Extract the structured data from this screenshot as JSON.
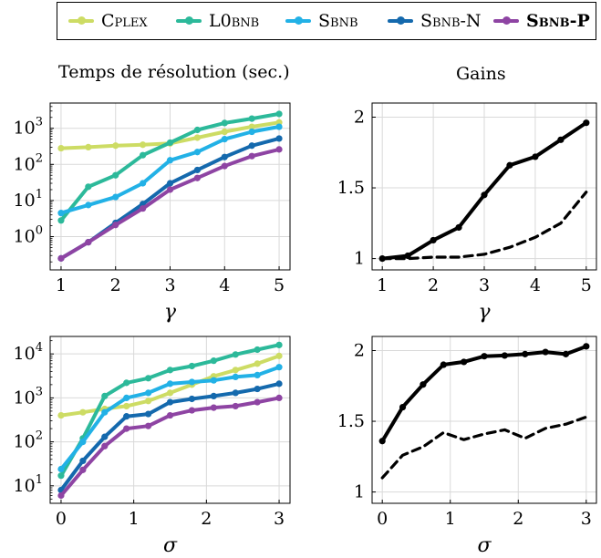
{
  "legend": {
    "entries": [
      {
        "name": "Cplex",
        "color": "#cddc64",
        "style": "smallcaps"
      },
      {
        "name": "L0bnb",
        "color": "#2cb99a",
        "style": "smallcaps"
      },
      {
        "name": "Sbnb",
        "color": "#22b1e6",
        "style": "smallcaps"
      },
      {
        "name": "Sbnb-N",
        "color": "#1469ad",
        "style": "smallcaps"
      },
      {
        "name": "Sbnb-P",
        "color": "#8e44a3",
        "style": "smallcaps-bold"
      }
    ]
  },
  "titles": {
    "left": "Temps de résolution (sec.)",
    "right": "Gains"
  },
  "chart_data": [
    {
      "id": "time-gamma",
      "type": "line",
      "title": "",
      "xlabel": "γ",
      "ylabel": "",
      "yscale": "log",
      "xlim": [
        0.8,
        5.2
      ],
      "ylim": [
        0.12,
        5000
      ],
      "xticks": [
        1,
        2,
        3,
        4,
        5
      ],
      "yticks": [
        {
          "v": 1,
          "t": "10^0"
        },
        {
          "v": 10,
          "t": "10^1"
        },
        {
          "v": 100,
          "t": "10^2"
        },
        {
          "v": 1000,
          "t": "10^3"
        }
      ],
      "grid": true,
      "x": [
        1,
        1.5,
        2,
        2.5,
        3,
        3.5,
        4,
        4.5,
        5
      ],
      "series": [
        {
          "name": "Cplex",
          "color": "#cddc64",
          "values": [
            280,
            300,
            330,
            350,
            380,
            550,
            800,
            1100,
            1450
          ]
        },
        {
          "name": "L0bnb",
          "color": "#2cb99a",
          "values": [
            2.8,
            24,
            50,
            180,
            400,
            900,
            1400,
            1850,
            2500
          ]
        },
        {
          "name": "Sbnb",
          "color": "#22b1e6",
          "values": [
            4.5,
            7.5,
            12.5,
            30,
            130,
            220,
            500,
            800,
            1100
          ]
        },
        {
          "name": "Sbnb-N",
          "color": "#1469ad",
          "values": [
            0.25,
            0.7,
            2.4,
            8,
            30,
            70,
            160,
            330,
            520
          ]
        },
        {
          "name": "Sbnb-P",
          "color": "#8e44a3",
          "values": [
            0.25,
            0.7,
            2.1,
            6,
            20,
            42,
            90,
            170,
            260
          ]
        }
      ]
    },
    {
      "id": "gain-gamma",
      "type": "line",
      "title": "",
      "xlabel": "γ",
      "ylabel": "",
      "yscale": "linear",
      "xlim": [
        0.8,
        5.2
      ],
      "ylim": [
        0.92,
        2.1
      ],
      "xticks": [
        1,
        2,
        3,
        4,
        5
      ],
      "yticks": [
        {
          "v": 1,
          "t": "1"
        },
        {
          "v": 1.5,
          "t": "1.5"
        },
        {
          "v": 2,
          "t": "2"
        }
      ],
      "grid": true,
      "x": [
        1,
        1.5,
        2,
        2.5,
        3,
        3.5,
        4,
        4.5,
        5
      ],
      "series": [
        {
          "name": "",
          "color": "#000000",
          "dash": false,
          "markers": true,
          "values": [
            1.0,
            1.02,
            1.13,
            1.22,
            1.45,
            1.66,
            1.72,
            1.84,
            1.96
          ]
        },
        {
          "name": "",
          "color": "#000000",
          "dash": true,
          "markers": false,
          "values": [
            1.0,
            1.0,
            1.01,
            1.01,
            1.03,
            1.08,
            1.15,
            1.25,
            1.47
          ]
        }
      ]
    },
    {
      "id": "time-sigma",
      "type": "line",
      "title": "",
      "xlabel": "σ",
      "ylabel": "",
      "yscale": "log",
      "xlim": [
        -0.15,
        3.15
      ],
      "ylim": [
        4,
        25000
      ],
      "xticks": [
        0,
        1,
        2,
        3
      ],
      "yticks": [
        {
          "v": 10,
          "t": "10^1"
        },
        {
          "v": 100,
          "t": "10^2"
        },
        {
          "v": 1000,
          "t": "10^3"
        },
        {
          "v": 10000,
          "t": "10^4"
        }
      ],
      "grid": true,
      "x": [
        0,
        0.3,
        0.6,
        0.9,
        1.2,
        1.5,
        1.8,
        2.1,
        2.4,
        2.7,
        3.0
      ],
      "series": [
        {
          "name": "Cplex",
          "color": "#cddc64",
          "values": [
            400,
            470,
            560,
            650,
            850,
            1300,
            2000,
            3100,
            4300,
            6000,
            9000
          ]
        },
        {
          "name": "L0bnb",
          "color": "#2cb99a",
          "values": [
            17,
            120,
            1100,
            2200,
            2800,
            4300,
            5300,
            7000,
            9700,
            12500,
            16000
          ]
        },
        {
          "name": "Sbnb",
          "color": "#22b1e6",
          "values": [
            24,
            100,
            470,
            1000,
            1300,
            2100,
            2300,
            2500,
            3000,
            3300,
            5000
          ]
        },
        {
          "name": "Sbnb-N",
          "color": "#1469ad",
          "values": [
            8,
            37,
            130,
            380,
            430,
            800,
            950,
            1100,
            1300,
            1600,
            2100
          ]
        },
        {
          "name": "Sbnb-P",
          "color": "#8e44a3",
          "values": [
            6,
            23,
            80,
            200,
            230,
            400,
            520,
            600,
            650,
            800,
            1000
          ]
        }
      ]
    },
    {
      "id": "gain-sigma",
      "type": "line",
      "title": "",
      "xlabel": "σ",
      "ylabel": "",
      "yscale": "linear",
      "xlim": [
        -0.15,
        3.15
      ],
      "ylim": [
        0.92,
        2.1
      ],
      "xticks": [
        0,
        1,
        2,
        3
      ],
      "yticks": [
        {
          "v": 1,
          "t": "1"
        },
        {
          "v": 1.5,
          "t": "1.5"
        },
        {
          "v": 2,
          "t": "2"
        }
      ],
      "grid": true,
      "x": [
        0,
        0.3,
        0.6,
        0.9,
        1.2,
        1.5,
        1.8,
        2.1,
        2.4,
        2.7,
        3.0
      ],
      "series": [
        {
          "name": "",
          "color": "#000000",
          "dash": false,
          "markers": true,
          "values": [
            1.36,
            1.6,
            1.76,
            1.9,
            1.92,
            1.96,
            1.965,
            1.975,
            1.99,
            1.975,
            2.03
          ]
        },
        {
          "name": "",
          "color": "#000000",
          "dash": true,
          "markers": false,
          "values": [
            1.1,
            1.26,
            1.32,
            1.42,
            1.37,
            1.41,
            1.44,
            1.38,
            1.45,
            1.48,
            1.53
          ]
        }
      ]
    }
  ]
}
